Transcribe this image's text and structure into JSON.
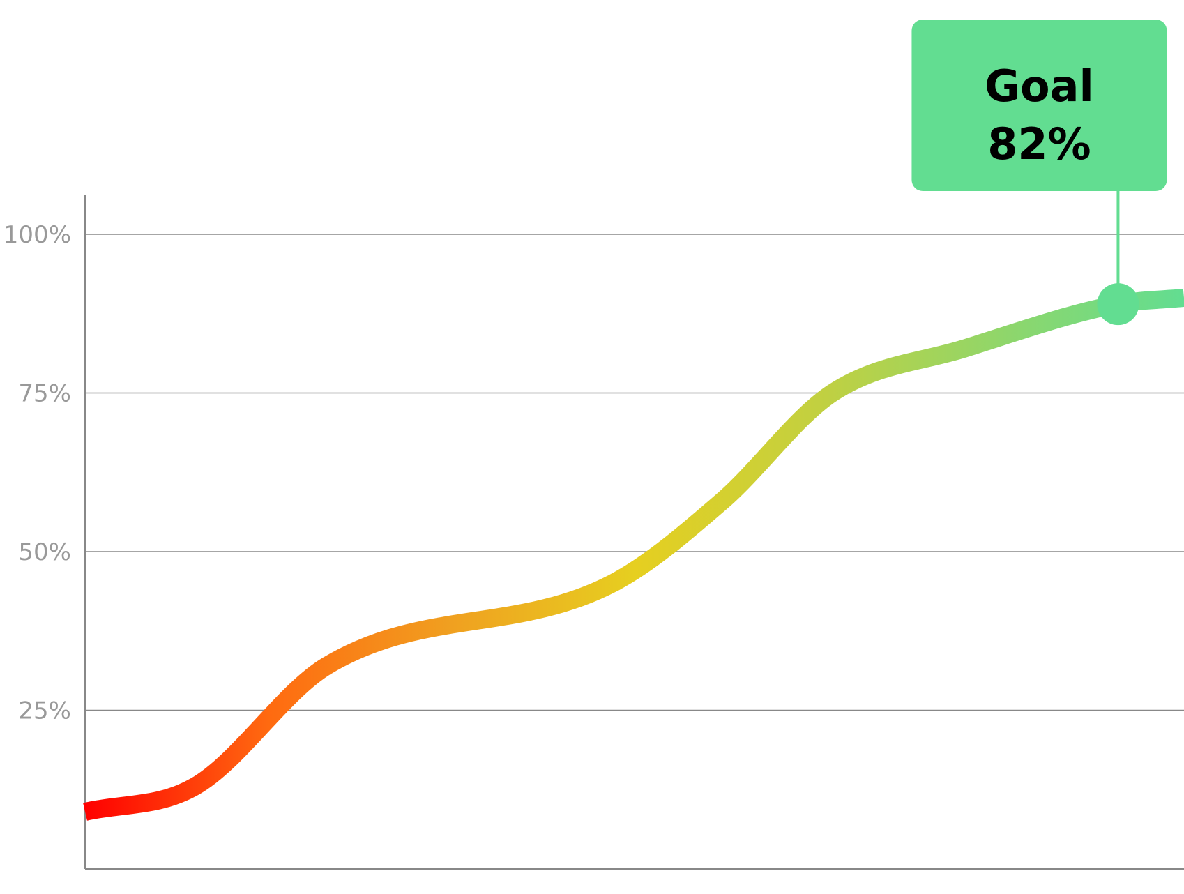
{
  "chart_data": {
    "type": "line",
    "title": "",
    "xlabel": "",
    "ylabel": "",
    "ylim": [
      0,
      100
    ],
    "y_ticks": [
      {
        "value": 25,
        "label": "25%"
      },
      {
        "value": 50,
        "label": "50%"
      },
      {
        "value": 75,
        "label": "75%"
      },
      {
        "value": 100,
        "label": "100%"
      }
    ],
    "grid": true,
    "legend": "none",
    "xlim": [
      0,
      1
    ],
    "series": [
      {
        "x": [
          0,
          0.1,
          0.22,
          0.48,
          0.58,
          0.68,
          0.8,
          0.94,
          1.0
        ],
        "values": [
          9,
          13,
          32,
          45,
          58,
          75,
          82,
          89,
          90
        ],
        "gradient": [
          "#ff0000",
          "#ff6a10",
          "#f0a020",
          "#e6cf20",
          "#c2d040",
          "#90d66a",
          "#62dd91"
        ]
      }
    ],
    "annotations": [
      {
        "x": 0.94,
        "y": 89,
        "title": "Goal",
        "text": "82%",
        "color": "#62dd91"
      }
    ]
  }
}
